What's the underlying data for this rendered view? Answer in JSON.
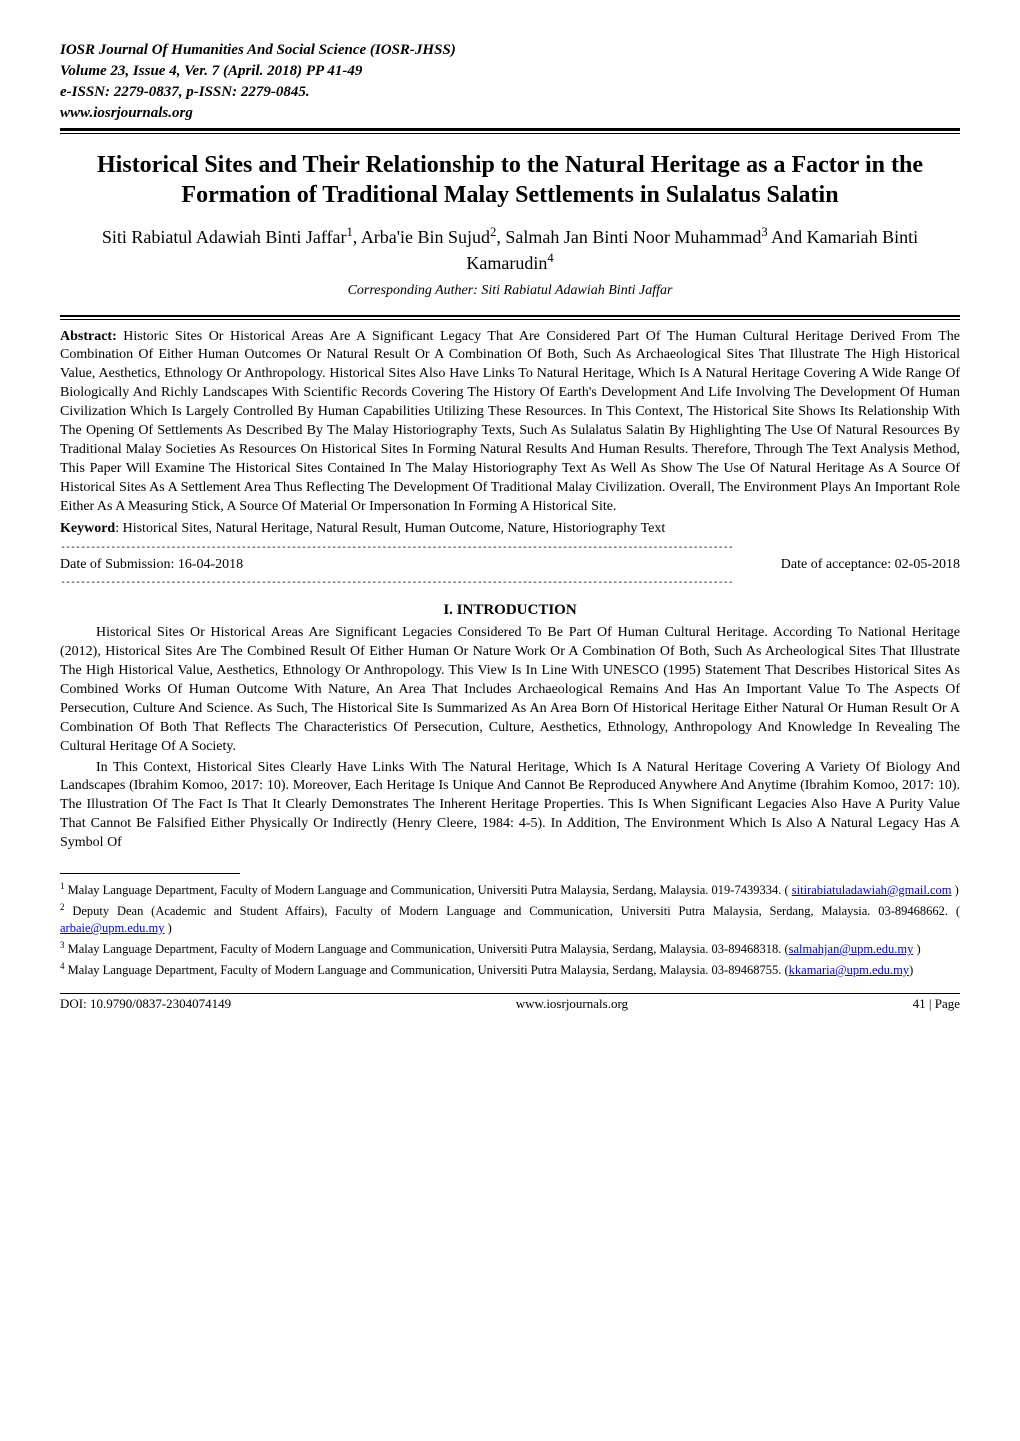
{
  "journal_header": {
    "line1": "IOSR Journal Of Humanities And Social Science (IOSR-JHSS)",
    "line2": "Volume 23, Issue 4, Ver. 7 (April. 2018) PP 41-49",
    "line3": "e-ISSN: 2279-0837, p-ISSN: 2279-0845.",
    "line4": "www.iosrjournals.org"
  },
  "title": "Historical Sites and Their Relationship to the Natural Heritage as a Factor in the Formation of Traditional Malay Settlements in Sulalatus Salatin",
  "authors": {
    "name1": "Siti Rabiatul Adawiah Binti Jaffar",
    "name2": "Arba'ie Bin Sujud",
    "name3": "Salmah Jan Binti Noor Muhammad",
    "name4": "Kamariah Binti Kamarudin",
    "joiner": " And "
  },
  "corresponding": "Corresponding Auther: Siti Rabiatul Adawiah Binti Jaffar",
  "abstract": {
    "label": "Abstract: ",
    "text": "Historic Sites Or Historical Areas Are A Significant Legacy That Are Considered Part Of The Human Cultural Heritage Derived From The Combination Of Either Human Outcomes Or Natural Result Or A Combination Of Both, Such As Archaeological Sites That Illustrate The High Historical Value, Aesthetics, Ethnology Or Anthropology. Historical Sites Also Have Links To Natural Heritage, Which Is A Natural Heritage Covering A Wide Range Of Biologically And Richly Landscapes With Scientific Records Covering The History Of Earth's Development And Life Involving The Development Of Human Civilization Which Is Largely Controlled By Human Capabilities Utilizing These Resources. In This Context, The Historical Site Shows Its Relationship With The Opening Of Settlements As Described By The Malay Historiography Texts, Such As Sulalatus Salatin By Highlighting The Use Of Natural Resources By Traditional Malay Societies As Resources On Historical Sites In Forming Natural Results And Human Results. Therefore, Through The Text Analysis Method, This Paper Will Examine The Historical Sites Contained In The Malay Historiography Text As Well As Show The Use Of Natural Heritage As A Source Of Historical Sites As A Settlement Area Thus Reflecting The Development Of Traditional Malay Civilization. Overall, The Environment Plays An Important Role Either As A Measuring Stick, A Source Of Material Or Impersonation In Forming A Historical Site."
  },
  "keyword": {
    "label": "Keyword",
    "text": ": Historical Sites, Natural Heritage, Natural Result, Human Outcome, Nature, Historiography Text"
  },
  "dates": {
    "submission": "Date of Submission: 16-04-2018",
    "acceptance": "Date of acceptance: 02-05-2018"
  },
  "section": {
    "heading": "I.   INTRODUCTION",
    "para1": "Historical Sites Or Historical Areas Are Significant Legacies Considered To Be Part Of Human Cultural Heritage. According To National Heritage (2012), Historical Sites Are The Combined Result Of Either Human Or Nature Work Or A Combination Of Both, Such As Archeological Sites That Illustrate The High Historical Value, Aesthetics, Ethnology Or Anthropology. This View Is In Line With UNESCO (1995) Statement That Describes Historical Sites As Combined Works Of Human Outcome With Nature, An Area That Includes Archaeological Remains And Has An Important Value To The Aspects Of Persecution, Culture And Science. As Such, The Historical Site Is Summarized As An Area Born Of Historical Heritage Either Natural Or Human Result Or A Combination Of Both That Reflects The Characteristics Of Persecution, Culture, Aesthetics, Ethnology, Anthropology And Knowledge In Revealing The Cultural Heritage Of A Society.",
    "para2": "In This Context, Historical Sites Clearly Have Links With The Natural Heritage, Which Is A Natural Heritage Covering A Variety Of Biology And Landscapes (Ibrahim Komoo, 2017: 10). Moreover, Each Heritage Is Unique And Cannot Be Reproduced Anywhere And Anytime (Ibrahim Komoo, 2017: 10). The Illustration Of The Fact Is That It Clearly Demonstrates The Inherent Heritage Properties. This Is When Significant Legacies Also Have A Purity Value That Cannot Be Falsified Either Physically Or Indirectly (Henry Cleere, 1984: 4-5). In Addition, The Environment Which Is Also A Natural Legacy Has A Symbol Of"
  },
  "footnotes": {
    "f1_pre": "Malay Language Department, Faculty of Modern Language and Communication, Universiti Putra Malaysia, Serdang, Malaysia. 019-7439334. ( ",
    "f1_email": "sitirabiatuladawiah@gmail.com",
    "f1_post": " )",
    "f2_pre": "Deputy Dean (Academic and Student Affairs), Faculty of Modern Language and Communication, Universiti Putra Malaysia, Serdang, Malaysia. 03-89468662. ( ",
    "f2_email": "arbaie@upm.edu.my",
    "f2_post": " )",
    "f3_pre": "Malay Language Department, Faculty of Modern Language and Communication, Universiti Putra Malaysia, Serdang, Malaysia. 03-89468318. (",
    "f3_email": "salmahjan@upm.edu.my",
    "f3_post": " )",
    "f4_pre": "Malay Language Department, Faculty of Modern Language and Communication, Universiti Putra Malaysia, Serdang, Malaysia. 03-89468755. (",
    "f4_email": "kkamaria@upm.edu.my",
    "f4_post": ")"
  },
  "footer": {
    "doi": "DOI: 10.9790/0837-2304074149",
    "site": "www.iosrjournals.org",
    "page": "41 | Page"
  },
  "colors": {
    "text": "#000000",
    "background": "#ffffff",
    "link": "#0000ee"
  },
  "dash_rule": "--------------------------------------------------------------------------------------------------------------------------------------"
}
